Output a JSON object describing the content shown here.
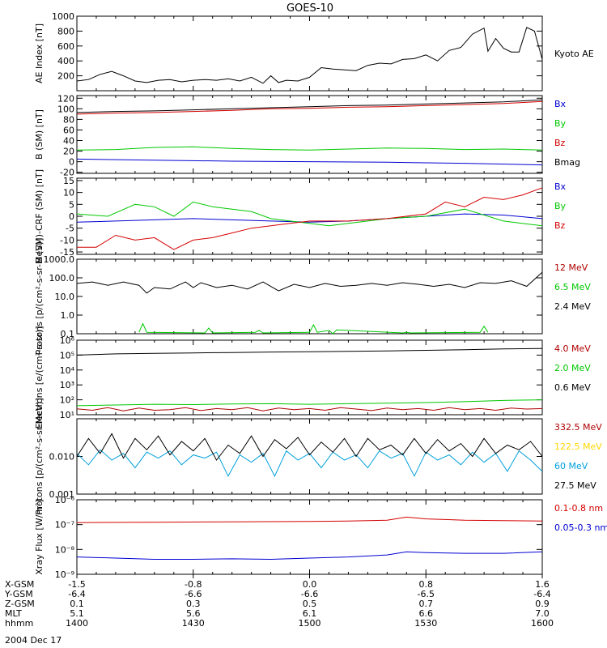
{
  "title": "GOES-10",
  "date_label": "2004 Dec 17",
  "footer": {
    "rows": [
      {
        "label": "X-GSM",
        "values": [
          "-1.5",
          "-0.8",
          "0.0",
          "0.8",
          "1.6"
        ]
      },
      {
        "label": "Y-GSM",
        "values": [
          "-6.4",
          "-6.6",
          "-6.6",
          "-6.5",
          "-6.4"
        ]
      },
      {
        "label": "Z-GSM",
        "values": [
          "0.1",
          "0.3",
          "0.5",
          "0.7",
          "0.9"
        ]
      },
      {
        "label": "MLT",
        "values": [
          "5.1",
          "5.6",
          "6.1",
          "6.6",
          "7.0"
        ]
      },
      {
        "label": "hhmm",
        "values": [
          "1400",
          "1430",
          "1500",
          "1530",
          "1600"
        ]
      }
    ]
  },
  "colors": {
    "black": "#000000",
    "red": "#d40000",
    "green": "#00c800",
    "blue": "#0000d2",
    "cyan": "#00a0dc",
    "yellow": "#ffd700",
    "darkred": "#b00000"
  },
  "chart_data": [
    {
      "type": "line",
      "ylabel": "AE Index [nT]",
      "ylim": [
        0,
        1000
      ],
      "yticks": [
        200,
        400,
        600,
        800,
        1000
      ],
      "ytick_labels": [
        "200",
        "400",
        "600",
        "800",
        "1000"
      ],
      "series": [
        {
          "name": "Kyoto AE",
          "color": "black",
          "x": [
            0,
            3,
            6,
            9,
            12,
            15,
            18,
            21,
            24,
            27,
            30,
            33,
            36,
            39,
            42,
            45,
            48,
            50,
            52,
            54,
            57,
            60,
            63,
            66,
            69,
            72,
            75,
            78,
            81,
            84,
            87,
            90,
            93,
            96,
            99,
            102,
            105,
            106,
            108,
            110,
            112,
            114,
            116,
            118,
            120
          ],
          "y": [
            130,
            150,
            220,
            260,
            200,
            130,
            110,
            140,
            150,
            120,
            140,
            150,
            140,
            160,
            130,
            180,
            100,
            200,
            110,
            140,
            130,
            180,
            310,
            290,
            280,
            270,
            340,
            370,
            360,
            420,
            430,
            480,
            400,
            540,
            580,
            760,
            840,
            530,
            700,
            570,
            520,
            520,
            850,
            800,
            420
          ]
        }
      ]
    },
    {
      "type": "line",
      "ylabel": "B (SM) [nT]",
      "ylim": [
        -22,
        125
      ],
      "yticks": [
        -20,
        0,
        20,
        40,
        60,
        80,
        100,
        120
      ],
      "ytick_labels": [
        "-20",
        "0",
        "20",
        "40",
        "60",
        "80",
        "100",
        "120"
      ],
      "series": [
        {
          "name": "Bx",
          "color": "blue",
          "x": [
            0,
            20,
            40,
            60,
            80,
            100,
            120
          ],
          "y": [
            5,
            3,
            1,
            0,
            -1,
            -3,
            -6
          ]
        },
        {
          "name": "By",
          "color": "green",
          "x": [
            0,
            10,
            20,
            30,
            40,
            50,
            60,
            70,
            80,
            90,
            100,
            110,
            120
          ],
          "y": [
            22,
            23,
            27,
            28,
            25,
            23,
            22,
            24,
            26,
            25,
            23,
            24,
            22
          ]
        },
        {
          "name": "Bz",
          "color": "red",
          "x": [
            0,
            10,
            20,
            30,
            40,
            50,
            60,
            70,
            80,
            90,
            100,
            110,
            120
          ],
          "y": [
            90,
            92,
            93,
            95,
            97,
            100,
            101,
            103,
            104,
            106,
            108,
            110,
            114
          ]
        },
        {
          "name": "Bmag",
          "color": "black",
          "x": [
            0,
            10,
            20,
            30,
            40,
            50,
            60,
            70,
            80,
            90,
            100,
            110,
            120
          ],
          "y": [
            93,
            95,
            96,
            98,
            100,
            102,
            104,
            106,
            107,
            109,
            111,
            113,
            117
          ]
        }
      ]
    },
    {
      "type": "line",
      "ylabel": "B (SM)-CRF (SM) [nT]",
      "ylim": [
        -16,
        16
      ],
      "yticks": [
        -15,
        -10,
        -5,
        0,
        5,
        10,
        15
      ],
      "ytick_labels": [
        "-15",
        "-10",
        "-5",
        "0",
        "5",
        "10",
        "15"
      ],
      "series": [
        {
          "name": "Bx",
          "color": "blue",
          "x": [
            0,
            10,
            20,
            30,
            40,
            50,
            60,
            70,
            80,
            90,
            100,
            110,
            120
          ],
          "y": [
            -2.5,
            -2,
            -1.5,
            -1,
            -1.5,
            -2,
            -2.5,
            -2,
            -1,
            0,
            1,
            0.5,
            -1
          ]
        },
        {
          "name": "By",
          "color": "green",
          "x": [
            0,
            8,
            15,
            20,
            25,
            30,
            35,
            40,
            45,
            50,
            55,
            60,
            65,
            70,
            75,
            80,
            90,
            100,
            110,
            120
          ],
          "y": [
            1,
            0,
            5,
            4,
            0,
            6,
            4,
            3,
            2,
            -1,
            -2,
            -3,
            -4,
            -3,
            -2,
            -1,
            0,
            3,
            -2,
            -4
          ]
        },
        {
          "name": "Bz",
          "color": "red",
          "x": [
            0,
            5,
            10,
            15,
            20,
            25,
            30,
            35,
            40,
            45,
            50,
            55,
            60,
            70,
            80,
            90,
            95,
            100,
            105,
            110,
            115,
            120
          ],
          "y": [
            -13,
            -13,
            -8,
            -10,
            -9,
            -14,
            -10,
            -9,
            -7,
            -5,
            -4,
            -3,
            -2,
            -2,
            -1,
            1,
            6,
            4,
            8,
            7,
            9,
            12
          ]
        }
      ]
    },
    {
      "type": "line",
      "ylabel": "Protons [p/(cm²-s-sr-MeV)]",
      "yscale": "log",
      "ylim": [
        0.1,
        1000
      ],
      "yticks": [
        0.1,
        1,
        10,
        100,
        1000
      ],
      "ytick_labels": [
        "0.1",
        "1.0",
        "10.0",
        "100.0",
        "1000.0"
      ],
      "series": [
        {
          "name": "12 MeV",
          "color": "darkred",
          "x": [],
          "y": []
        },
        {
          "name": "6.5 MeV",
          "color": "green",
          "x": [
            16,
            17,
            18,
            33,
            34,
            35,
            46,
            47,
            48,
            60,
            61,
            62,
            65,
            66,
            67,
            84,
            85,
            86,
            104,
            105,
            106
          ],
          "y": [
            0.12,
            0.35,
            0.12,
            0.11,
            0.2,
            0.11,
            0.12,
            0.15,
            0.11,
            0.12,
            0.3,
            0.12,
            0.15,
            0.1,
            0.16,
            0.11,
            0.12,
            0.11,
            0.12,
            0.25,
            0.12
          ]
        },
        {
          "name": "2.4 MeV",
          "color": "black",
          "x": [
            0,
            4,
            8,
            12,
            16,
            18,
            20,
            24,
            28,
            30,
            32,
            36,
            40,
            44,
            48,
            52,
            56,
            60,
            64,
            68,
            72,
            76,
            80,
            84,
            88,
            92,
            96,
            100,
            104,
            108,
            112,
            116,
            120
          ],
          "y": [
            50,
            60,
            40,
            60,
            40,
            15,
            30,
            25,
            60,
            30,
            55,
            30,
            40,
            25,
            60,
            20,
            45,
            30,
            50,
            35,
            40,
            50,
            40,
            55,
            45,
            35,
            45,
            30,
            55,
            50,
            70,
            35,
            200
          ]
        }
      ]
    },
    {
      "type": "line",
      "ylabel": "Electrons [e/(cm²-s-sr)]",
      "yscale": "log",
      "ylim": [
        10,
        1000000
      ],
      "yticks": [
        10,
        100,
        1000,
        10000,
        100000,
        1000000
      ],
      "ytick_labels": [
        "10¹",
        "10²",
        "10³",
        "10⁴",
        "10⁵",
        "10⁶"
      ],
      "series": [
        {
          "name": "4.0 MeV",
          "color": "darkred",
          "x": [
            0,
            4,
            8,
            12,
            16,
            20,
            24,
            28,
            32,
            36,
            40,
            44,
            48,
            52,
            56,
            60,
            64,
            68,
            72,
            76,
            80,
            84,
            88,
            92,
            96,
            100,
            104,
            108,
            112,
            116,
            120
          ],
          "y": [
            25,
            20,
            30,
            18,
            28,
            20,
            22,
            30,
            19,
            26,
            22,
            30,
            18,
            28,
            22,
            26,
            20,
            30,
            24,
            19,
            28,
            22,
            26,
            20,
            30,
            22,
            26,
            20,
            28,
            24,
            26
          ]
        },
        {
          "name": "2.0 MeV",
          "color": "green",
          "x": [
            0,
            10,
            20,
            30,
            40,
            50,
            60,
            70,
            80,
            90,
            100,
            110,
            120
          ],
          "y": [
            40,
            45,
            50,
            48,
            52,
            55,
            50,
            55,
            60,
            65,
            75,
            90,
            100
          ]
        },
        {
          "name": "0.6 MeV",
          "color": "black",
          "x": [
            0,
            10,
            20,
            30,
            40,
            50,
            60,
            70,
            80,
            90,
            100,
            110,
            120
          ],
          "y": [
            100000,
            120000,
            130000,
            140000,
            150000,
            160000,
            170000,
            180000,
            190000,
            210000,
            230000,
            260000,
            280000
          ]
        }
      ]
    },
    {
      "type": "line",
      "ylabel": "Protons [p/(cm²-s-sr-MeV)]",
      "yscale": "log",
      "ylim": [
        0.001,
        0.1
      ],
      "yticks": [
        0.001,
        0.01,
        0.1
      ],
      "ytick_labels": [
        "0.001",
        "0.010",
        ""
      ],
      "series": [
        {
          "name": "332.5 MeV",
          "color": "darkred",
          "x": [],
          "y": []
        },
        {
          "name": "122.5 MeV",
          "color": "yellow",
          "x": [],
          "y": []
        },
        {
          "name": "60 MeV",
          "color": "cyan",
          "x": [
            0,
            3,
            6,
            9,
            12,
            15,
            18,
            21,
            24,
            27,
            30,
            33,
            36,
            39,
            42,
            45,
            48,
            51,
            54,
            57,
            60,
            63,
            66,
            69,
            72,
            75,
            78,
            81,
            84,
            87,
            90,
            93,
            96,
            99,
            102,
            105,
            108,
            111,
            114,
            117,
            120
          ],
          "y": [
            0.012,
            0.006,
            0.015,
            0.008,
            0.012,
            0.005,
            0.013,
            0.009,
            0.014,
            0.006,
            0.011,
            0.009,
            0.013,
            0.003,
            0.011,
            0.007,
            0.012,
            0.003,
            0.014,
            0.008,
            0.012,
            0.005,
            0.013,
            0.008,
            0.011,
            0.005,
            0.014,
            0.009,
            0.012,
            0.003,
            0.013,
            0.008,
            0.011,
            0.006,
            0.013,
            0.007,
            0.012,
            0.004,
            0.014,
            0.008,
            0.004
          ]
        },
        {
          "name": "27.5 MeV",
          "color": "black",
          "x": [
            0,
            3,
            6,
            9,
            12,
            15,
            18,
            21,
            24,
            27,
            30,
            33,
            36,
            39,
            42,
            45,
            48,
            51,
            54,
            57,
            60,
            63,
            66,
            69,
            72,
            75,
            78,
            81,
            84,
            87,
            90,
            93,
            96,
            99,
            102,
            105,
            108,
            111,
            114,
            117,
            120
          ],
          "y": [
            0.01,
            0.03,
            0.012,
            0.04,
            0.009,
            0.03,
            0.015,
            0.035,
            0.011,
            0.025,
            0.014,
            0.03,
            0.008,
            0.02,
            0.012,
            0.035,
            0.01,
            0.028,
            0.016,
            0.032,
            0.011,
            0.024,
            0.013,
            0.03,
            0.01,
            0.03,
            0.015,
            0.02,
            0.011,
            0.03,
            0.012,
            0.028,
            0.014,
            0.022,
            0.01,
            0.03,
            0.012,
            0.02,
            0.015,
            0.025,
            0.01
          ]
        }
      ]
    },
    {
      "type": "line",
      "ylabel": "Xray Flux [W/m²]",
      "yscale": "log",
      "ylim": [
        1e-09,
        1e-06
      ],
      "yticks": [
        1e-09,
        1e-08,
        1e-07,
        1e-06
      ],
      "ytick_labels": [
        "10⁻⁹",
        "10⁻⁸",
        "10⁻⁷",
        "10⁻⁶"
      ],
      "series": [
        {
          "name": "0.1-0.8 nm",
          "color": "red",
          "x": [
            0,
            20,
            40,
            60,
            70,
            80,
            85,
            90,
            95,
            100,
            110,
            120
          ],
          "y": [
            1.2e-07,
            1.25e-07,
            1.3e-07,
            1.35e-07,
            1.4e-07,
            1.5e-07,
            2e-07,
            1.7e-07,
            1.6e-07,
            1.5e-07,
            1.45e-07,
            1.4e-07
          ]
        },
        {
          "name": "0.05-0.3 nm",
          "color": "blue",
          "x": [
            0,
            10,
            20,
            30,
            40,
            50,
            60,
            70,
            80,
            85,
            90,
            100,
            110,
            120
          ],
          "y": [
            5e-09,
            4.5e-09,
            4e-09,
            4e-09,
            4.2e-09,
            4e-09,
            4.5e-09,
            5e-09,
            6e-09,
            8e-09,
            7.5e-09,
            7e-09,
            7e-09,
            8e-09
          ]
        }
      ]
    }
  ]
}
